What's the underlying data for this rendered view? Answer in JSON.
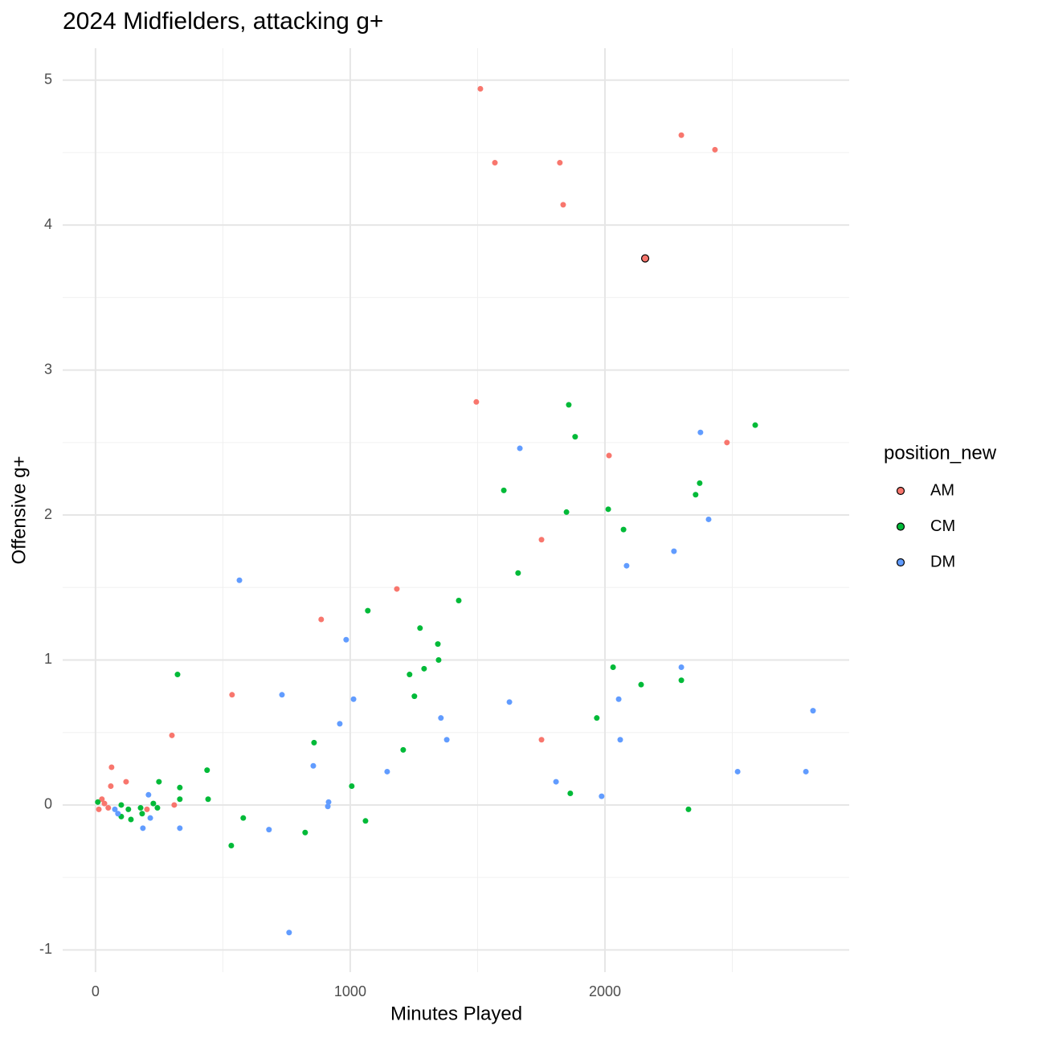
{
  "chart_data": {
    "type": "scatter",
    "title": "2024 Midfielders, attacking g+",
    "x_label": "Minutes Played",
    "y_label": "Offensive g+",
    "legend_title": "position_new",
    "legend": "right",
    "grid": true,
    "xlim": [
      -129,
      2959
    ],
    "ylim": [
      -1.153,
      5.22
    ],
    "xticks": [
      0,
      1000,
      2000
    ],
    "yticks": [
      -1,
      0,
      1,
      2,
      3,
      4,
      5
    ],
    "xminor": [
      500,
      1500,
      2500
    ],
    "yminor": [
      -0.5,
      0.5,
      1.5,
      2.5,
      3.5,
      4.5
    ],
    "series": [
      {
        "name": "AM",
        "color": "#F8766D",
        "highlight": 6,
        "x": [
          1511,
          1568,
          1823,
          1836,
          2300,
          2432,
          2158,
          1495,
          2479,
          2016,
          1751,
          1183,
          886,
          536,
          300,
          1751,
          63,
          120,
          60,
          25,
          35,
          13,
          50,
          202,
          309
        ],
        "values": [
          4.94,
          4.43,
          4.43,
          4.14,
          4.62,
          4.52,
          3.77,
          2.78,
          2.5,
          2.41,
          1.83,
          1.49,
          1.28,
          0.76,
          0.48,
          0.45,
          0.26,
          0.16,
          0.13,
          0.04,
          0.01,
          -0.03,
          -0.02,
          -0.03,
          0
        ]
      },
      {
        "name": "CM",
        "color": "#00BA38",
        "x": [
          9,
          101,
          101,
          129,
          139,
          177,
          183,
          227,
          243,
          249,
          322,
          331,
          331,
          438,
          442,
          533,
          580,
          823,
          858,
          1006,
          1060,
          1069,
          1208,
          1233,
          1252,
          1274,
          1290,
          1344,
          1347,
          1426,
          1603,
          1659,
          1849,
          1858,
          1864,
          1883,
          1968,
          2013,
          2032,
          2073,
          2142,
          2300,
          2328,
          2356,
          2372,
          2590
        ],
        "values": [
          0.02,
          0,
          -0.08,
          -0.03,
          -0.1,
          -0.02,
          -0.06,
          0.01,
          -0.02,
          0.16,
          0.9,
          0.12,
          0.04,
          0.24,
          0.04,
          -0.28,
          -0.09,
          -0.19,
          0.43,
          0.13,
          -0.11,
          1.34,
          0.38,
          0.9,
          0.75,
          1.22,
          0.94,
          1.11,
          1.0,
          1.41,
          2.17,
          1.6,
          2.02,
          2.76,
          0.08,
          2.54,
          0.6,
          2.04,
          0.95,
          1.9,
          0.83,
          0.86,
          -0.03,
          2.14,
          2.22,
          2.62
        ]
      },
      {
        "name": "DM",
        "color": "#619CFF",
        "x": [
          76,
          88,
          186,
          208,
          215,
          331,
          565,
          681,
          732,
          760,
          855,
          912,
          915,
          959,
          984,
          1013,
          1145,
          1356,
          1379,
          1625,
          1666,
          1808,
          1987,
          2054,
          2060,
          2085,
          2271,
          2300,
          2375,
          2407,
          2521,
          2789,
          2817
        ],
        "values": [
          -0.03,
          -0.06,
          -0.16,
          0.07,
          -0.09,
          -0.16,
          1.55,
          -0.17,
          0.76,
          -0.88,
          0.27,
          -0.01,
          0.02,
          0.56,
          1.14,
          0.73,
          0.23,
          0.6,
          0.45,
          0.71,
          2.46,
          0.16,
          0.06,
          0.73,
          0.45,
          1.65,
          1.75,
          0.95,
          2.57,
          1.97,
          0.23,
          0.23,
          0.65
        ]
      }
    ]
  }
}
